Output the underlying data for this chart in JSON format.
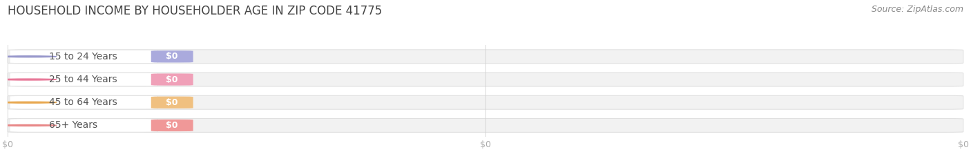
{
  "title": "HOUSEHOLD INCOME BY HOUSEHOLDER AGE IN ZIP CODE 41775",
  "source_text": "Source: ZipAtlas.com",
  "categories": [
    "15 to 24 Years",
    "25 to 44 Years",
    "45 to 64 Years",
    "65+ Years"
  ],
  "values": [
    0,
    0,
    0,
    0
  ],
  "dot_colors": [
    "#9999cc",
    "#e87898",
    "#e8a850",
    "#e88888"
  ],
  "badge_colors": [
    "#aaaadd",
    "#f0a0b8",
    "#f0c080",
    "#f09898"
  ],
  "label_bg_color": "#ffffff",
  "bar_track_color": "#f2f2f2",
  "bar_track_edge_color": "#e0e0e0",
  "background_color": "#ffffff",
  "title_color": "#444444",
  "label_color": "#555555",
  "tick_color": "#aaaaaa",
  "source_color": "#888888",
  "xlim": [
    0,
    1
  ],
  "title_fontsize": 12,
  "label_fontsize": 10,
  "tick_fontsize": 9,
  "source_fontsize": 9
}
